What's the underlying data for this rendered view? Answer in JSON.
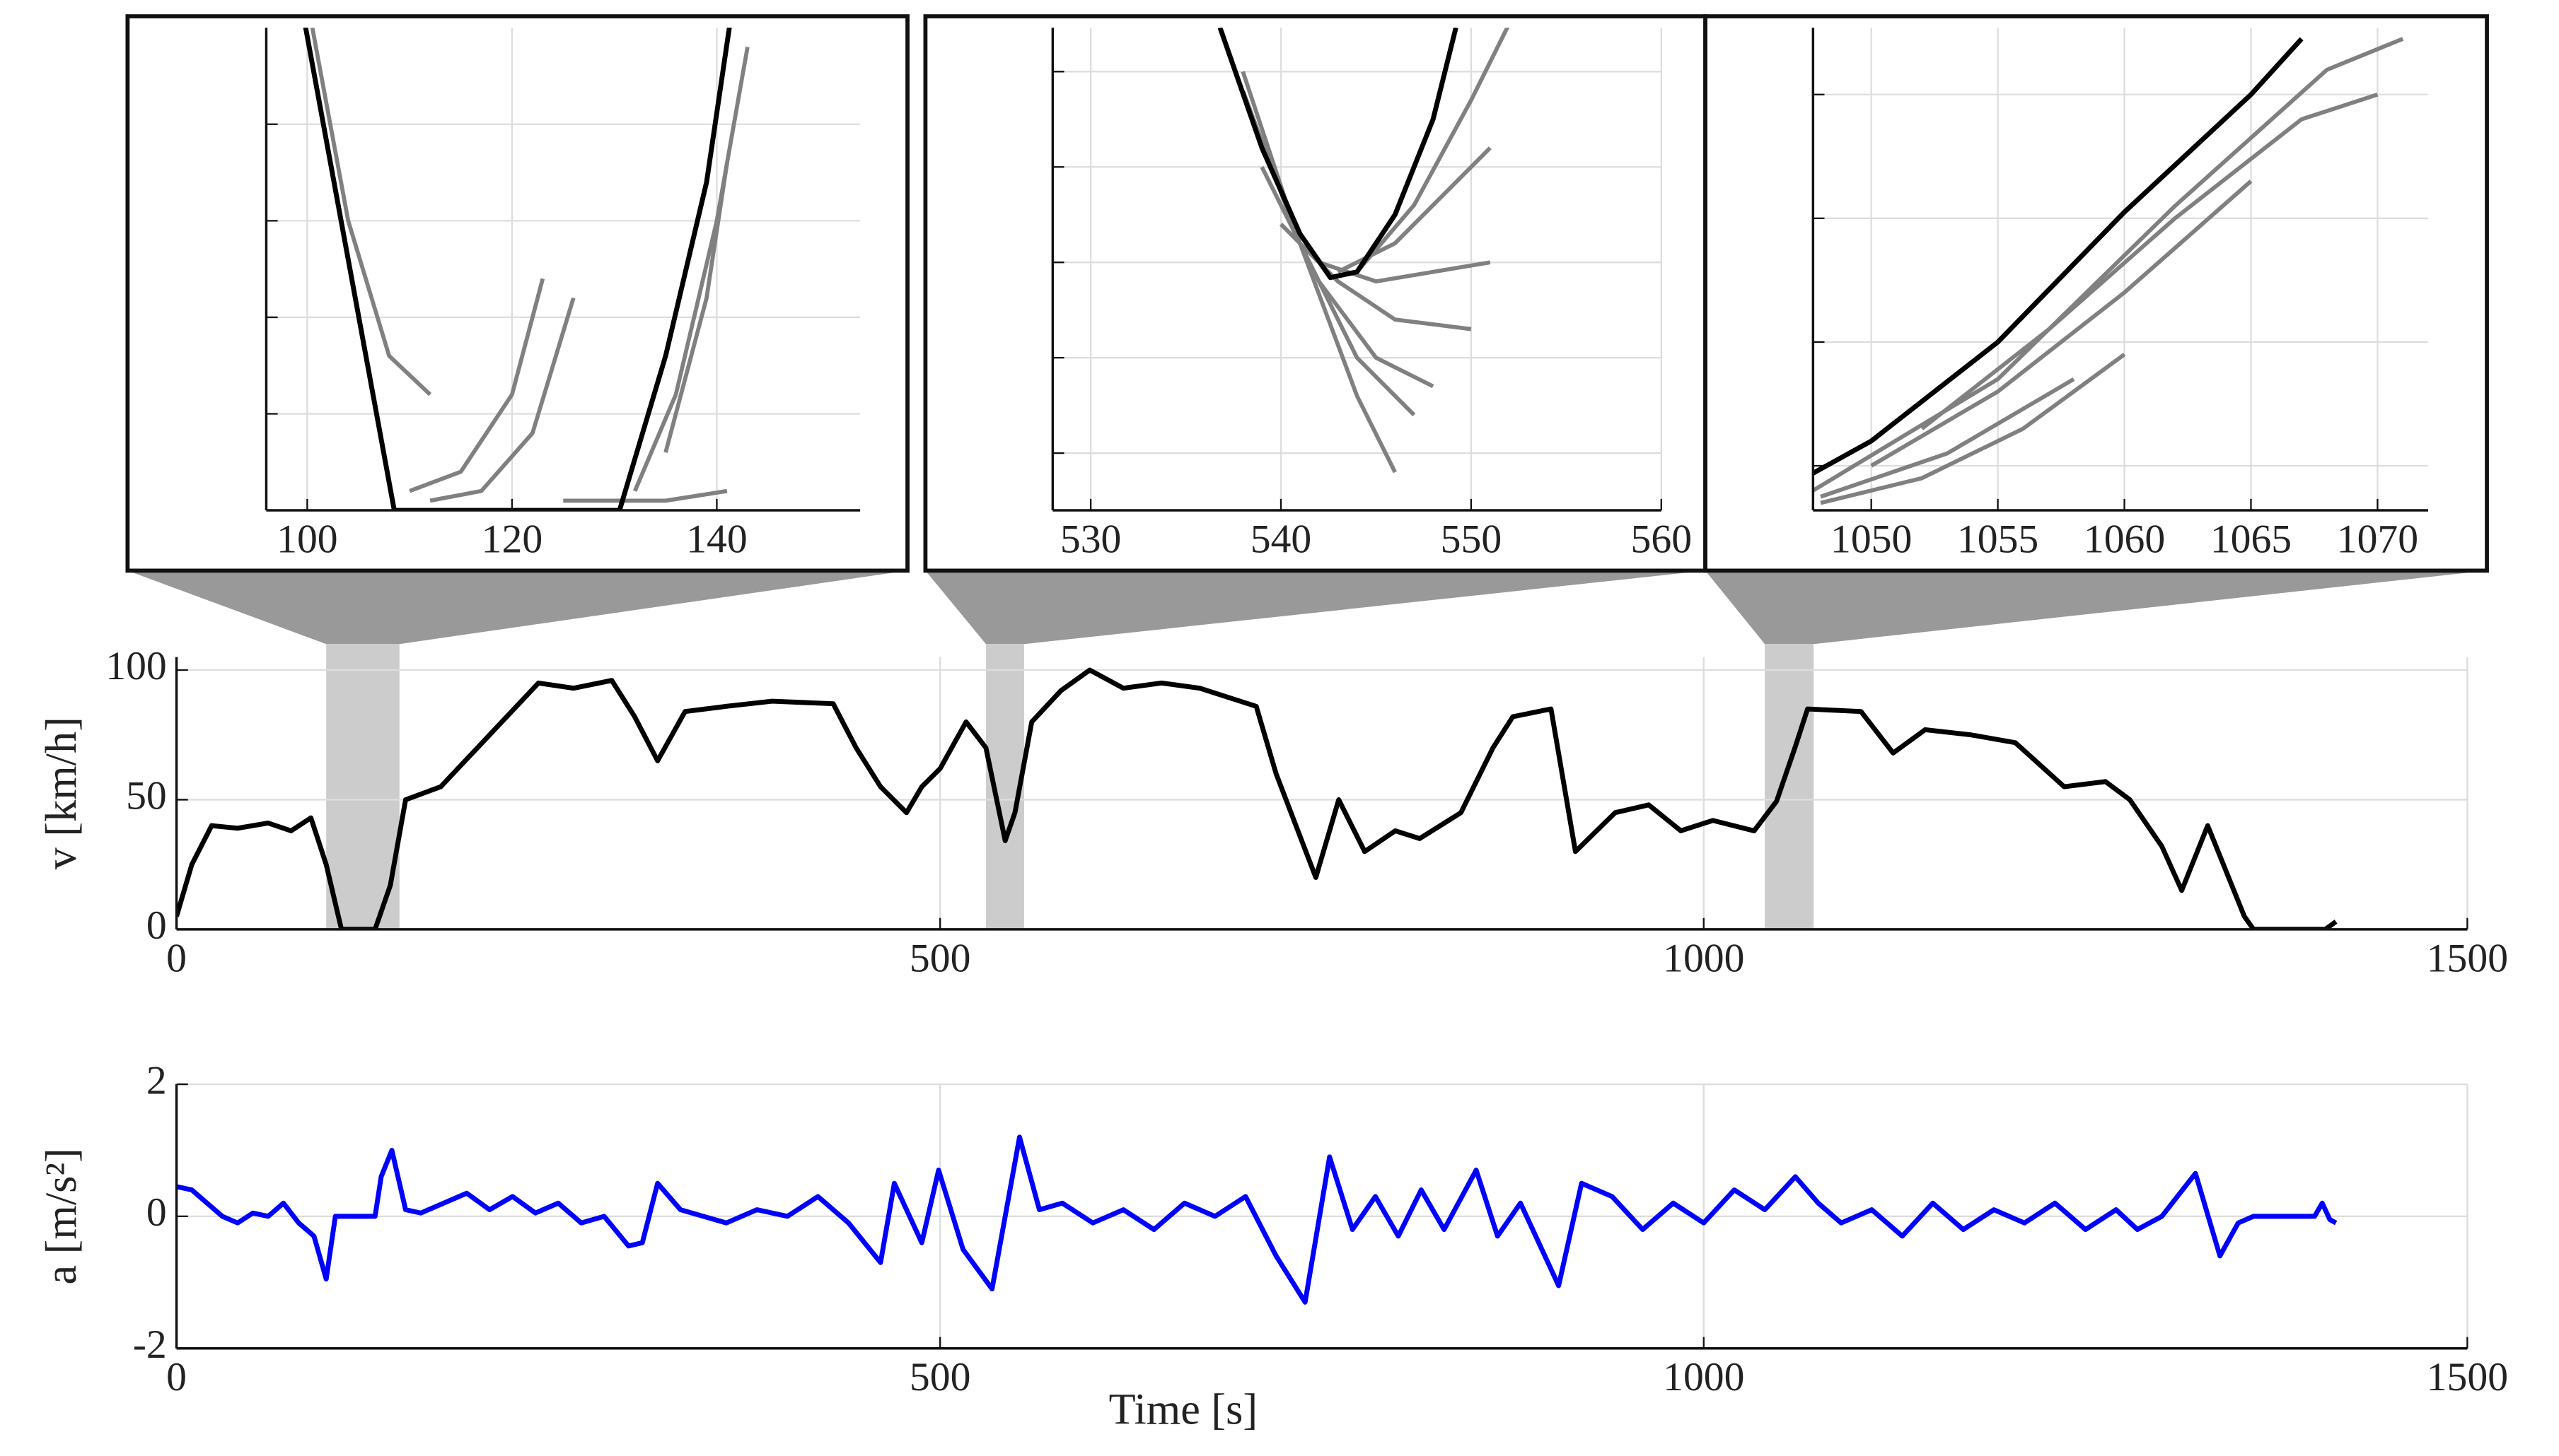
{
  "chart_data": [
    {
      "type": "line",
      "xlim": [
        96,
        154
      ],
      "xticks": [
        100,
        120,
        140
      ],
      "ylim": [
        0,
        25
      ],
      "yticks": [
        5,
        10,
        15,
        20
      ],
      "ytick_labels": false,
      "grid": true,
      "series": [
        {
          "color": "#808080",
          "x": [
            100.5,
            104,
            108,
            112
          ],
          "values": [
            25,
            15,
            8,
            6
          ]
        },
        {
          "color": "#808080",
          "x": [
            110,
            115,
            120,
            123
          ],
          "values": [
            1,
            2,
            6,
            12
          ]
        },
        {
          "color": "#808080",
          "x": [
            112,
            117,
            122,
            126
          ],
          "values": [
            0.5,
            1,
            4,
            11
          ]
        },
        {
          "color": "#808080",
          "x": [
            125,
            130,
            135,
            141
          ],
          "values": [
            0.5,
            0.5,
            0.5,
            1
          ]
        },
        {
          "color": "#808080",
          "x": [
            132,
            136,
            140,
            143
          ],
          "values": [
            1,
            6,
            15,
            24
          ]
        },
        {
          "color": "#808080",
          "x": [
            135,
            139,
            141
          ],
          "values": [
            3,
            11,
            18
          ]
        },
        {
          "color": "#000000",
          "x": [
            99.5,
            104,
            108.5,
            130.5,
            135,
            139,
            141.5
          ],
          "values": [
            26,
            13,
            0,
            0,
            8,
            17,
            26
          ]
        }
      ]
    },
    {
      "type": "line",
      "xlim": [
        528,
        560
      ],
      "xticks": [
        530,
        540,
        550,
        560
      ],
      "ylim": [
        22,
        47.3
      ],
      "yticks": [
        25,
        30,
        35,
        40,
        45
      ],
      "ytick_labels": false,
      "grid": true,
      "series": [
        {
          "color": "#808080",
          "x": [
            538,
            541,
            544,
            546
          ],
          "values": [
            45,
            36,
            28,
            24
          ]
        },
        {
          "color": "#808080",
          "x": [
            538,
            541,
            544,
            547
          ],
          "values": [
            44,
            36,
            30,
            27
          ]
        },
        {
          "color": "#808080",
          "x": [
            539,
            542,
            545,
            548
          ],
          "values": [
            40,
            34,
            30,
            28.5
          ]
        },
        {
          "color": "#808080",
          "x": [
            540,
            543,
            546,
            550
          ],
          "values": [
            37,
            34,
            32,
            31.5
          ]
        },
        {
          "color": "#808080",
          "x": [
            542,
            545,
            548,
            551
          ],
          "values": [
            35,
            34,
            34.5,
            35
          ]
        },
        {
          "color": "#808080",
          "x": [
            543,
            546,
            549,
            551
          ],
          "values": [
            34.5,
            36,
            39,
            41
          ]
        },
        {
          "color": "#808080",
          "x": [
            544,
            547,
            550,
            552
          ],
          "values": [
            34.5,
            38,
            43.5,
            47.5
          ]
        },
        {
          "color": "#000000",
          "x": [
            536.8,
            539,
            541,
            542.6,
            544,
            546,
            548,
            549.2
          ],
          "values": [
            47.3,
            41,
            36.5,
            34.2,
            34.5,
            37.5,
            42.5,
            47.3
          ]
        }
      ]
    },
    {
      "type": "line",
      "xlim": [
        1047.7,
        1072
      ],
      "xticks": [
        1050,
        1055,
        1060,
        1065,
        1070
      ],
      "ylim": [
        46.4,
        85.4
      ],
      "yticks": [
        50,
        60,
        70,
        80
      ],
      "ytick_labels": false,
      "grid": true,
      "series": [
        {
          "color": "#808080",
          "x": [
            1047.7,
            1055,
            1062,
            1068,
            1071
          ],
          "values": [
            48,
            57,
            71,
            82,
            84.5
          ]
        },
        {
          "color": "#808080",
          "x": [
            1048,
            1053,
            1058
          ],
          "values": [
            47.5,
            51,
            57
          ]
        },
        {
          "color": "#808080",
          "x": [
            1048,
            1052,
            1056,
            1060
          ],
          "values": [
            47,
            49,
            53,
            59
          ]
        },
        {
          "color": "#808080",
          "x": [
            1050,
            1055,
            1060,
            1065
          ],
          "values": [
            50,
            56,
            64,
            73
          ]
        },
        {
          "color": "#808080",
          "x": [
            1052,
            1057,
            1062,
            1067,
            1070
          ],
          "values": [
            53,
            61,
            70,
            78,
            80
          ]
        },
        {
          "color": "#000000",
          "x": [
            1047.7,
            1050,
            1055,
            1060,
            1065,
            1067
          ],
          "values": [
            49.4,
            52,
            60,
            70.5,
            80,
            84.5
          ]
        }
      ]
    },
    {
      "type": "line",
      "ylabel": "v [km/h]",
      "xlim": [
        0,
        1500
      ],
      "xticks": [
        0,
        500,
        1000,
        1500
      ],
      "ylim": [
        0,
        105
      ],
      "yticks": [
        0,
        50,
        100
      ],
      "grid": true,
      "highlights": [
        [
          98,
          146
        ],
        [
          530,
          555
        ],
        [
          1040,
          1072
        ]
      ],
      "series": [
        {
          "color": "#000000",
          "x": [
            0,
            10,
            23,
            40,
            60,
            75,
            88,
            98,
            108,
            130,
            140,
            150,
            173,
            205,
            237,
            260,
            285,
            300,
            315,
            333,
            360,
            390,
            430,
            445,
            461,
            478,
            488,
            500,
            517,
            530,
            542.6,
            549,
            560,
            579,
            598,
            620,
            645,
            670,
            707,
            720,
            746,
            761,
            778,
            798,
            814,
            841,
            862,
            875,
            900,
            916,
            942,
            964,
            985,
            1006,
            1033,
            1047.7,
            1060,
            1068,
            1103,
            1124,
            1145,
            1175,
            1204,
            1236,
            1263,
            1279,
            1300,
            1313,
            1330,
            1354,
            1360,
            1407,
            1414
          ],
          "values": [
            5,
            25,
            40,
            39,
            41,
            38,
            43,
            25,
            0,
            0,
            17,
            50,
            55,
            75,
            95,
            93,
            96,
            82,
            65,
            84,
            86,
            88,
            87,
            70,
            55,
            45,
            55,
            62,
            80,
            70,
            34.2,
            45,
            80,
            92,
            100,
            93,
            95,
            93,
            86,
            60,
            20,
            50,
            30,
            38,
            35,
            45,
            70,
            82,
            85,
            30,
            45,
            48,
            38,
            42,
            38,
            49.4,
            70.5,
            85,
            84,
            68,
            77,
            75,
            72,
            55,
            57,
            50,
            32,
            15,
            40,
            5,
            0,
            0,
            3
          ]
        }
      ]
    },
    {
      "type": "line",
      "ylabel": "a [m/s²]",
      "xlabel": "Time [s]",
      "xlim": [
        0,
        1500
      ],
      "xticks": [
        0,
        500,
        1000,
        1500
      ],
      "ylim": [
        -2,
        2
      ],
      "yticks": [
        -2,
        0,
        2
      ],
      "grid": true,
      "series": [
        {
          "color": "#0000ff",
          "x": [
            0,
            10,
            20,
            30,
            40,
            50,
            60,
            70,
            80,
            90,
            98,
            104,
            130,
            134,
            141,
            150,
            160,
            175,
            190,
            205,
            220,
            235,
            250,
            265,
            280,
            296,
            305,
            315,
            330,
            345,
            360,
            380,
            400,
            420,
            440,
            461,
            470,
            488,
            499,
            515,
            534,
            552,
            565,
            580,
            600,
            620,
            640,
            660,
            680,
            700,
            720,
            739,
            755,
            770,
            785,
            800,
            815,
            830,
            851,
            865,
            880,
            905,
            920,
            940,
            960,
            980,
            1000,
            1020,
            1040,
            1060,
            1075,
            1090,
            1110,
            1130,
            1150,
            1170,
            1190,
            1210,
            1230,
            1250,
            1270,
            1284,
            1300,
            1322,
            1338,
            1350,
            1360,
            1400,
            1405,
            1410,
            1414
          ],
          "values": [
            0.45,
            0.4,
            0.2,
            0,
            -0.1,
            0.05,
            0,
            0.2,
            -0.1,
            -0.3,
            -0.95,
            0,
            0,
            0.6,
            1.0,
            0.1,
            0.05,
            0.2,
            0.35,
            0.1,
            0.3,
            0.05,
            0.2,
            -0.1,
            0,
            -0.45,
            -0.4,
            0.5,
            0.1,
            0,
            -0.1,
            0.1,
            0,
            0.3,
            -0.1,
            -0.7,
            0.5,
            -0.4,
            0.7,
            -0.5,
            -1.1,
            1.2,
            0.1,
            0.2,
            -0.1,
            0.1,
            -0.2,
            0.2,
            0,
            0.3,
            -0.6,
            -1.3,
            0.9,
            -0.2,
            0.3,
            -0.3,
            0.4,
            -0.2,
            0.7,
            -0.3,
            0.2,
            -1.05,
            0.5,
            0.3,
            -0.2,
            0.2,
            -0.1,
            0.4,
            0.1,
            0.6,
            0.2,
            -0.1,
            0.1,
            -0.3,
            0.2,
            -0.2,
            0.1,
            -0.1,
            0.2,
            -0.2,
            0.1,
            -0.2,
            0,
            0.65,
            -0.6,
            -0.1,
            0,
            0,
            0.2,
            -0.05,
            -0.1
          ]
        }
      ]
    }
  ]
}
